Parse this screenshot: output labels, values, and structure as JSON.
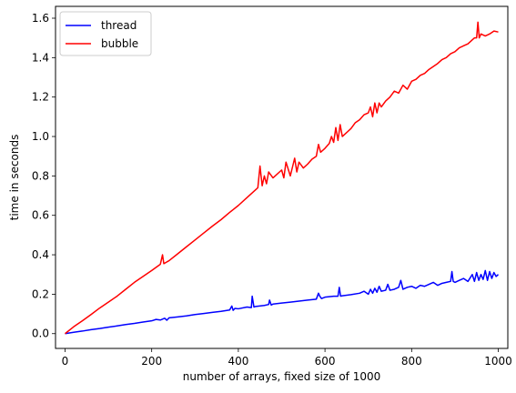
{
  "chart_data": {
    "type": "line",
    "xlabel": "number of arrays, fixed size of 1000",
    "ylabel": "time in seconds",
    "xlim": [
      -22,
      1022
    ],
    "ylim": [
      -0.075,
      1.66
    ],
    "xticks": [
      0,
      200,
      400,
      600,
      800,
      1000
    ],
    "yticks": [
      0.0,
      0.2,
      0.4,
      0.6,
      0.8,
      1.0,
      1.2,
      1.4,
      1.6
    ],
    "grid": false,
    "legend": "top-left",
    "series": [
      {
        "name": "thread",
        "color": "#0000ff",
        "x": [
          0,
          20,
          40,
          60,
          80,
          100,
          120,
          140,
          160,
          180,
          200,
          210,
          220,
          230,
          235,
          240,
          260,
          280,
          300,
          320,
          340,
          360,
          380,
          385,
          388,
          392,
          400,
          420,
          430,
          432,
          436,
          440,
          460,
          470,
          472,
          476,
          480,
          500,
          520,
          540,
          560,
          580,
          585,
          588,
          592,
          600,
          620,
          630,
          633,
          636,
          640,
          660,
          680,
          690,
          700,
          705,
          710,
          715,
          720,
          725,
          730,
          740,
          745,
          750,
          760,
          770,
          775,
          780,
          790,
          800,
          810,
          820,
          830,
          840,
          850,
          860,
          870,
          880,
          890,
          893,
          896,
          900,
          910,
          920,
          930,
          940,
          945,
          950,
          955,
          960,
          965,
          970,
          975,
          980,
          985,
          990,
          995,
          1000
        ],
        "values": [
          0.0,
          0.007,
          0.013,
          0.02,
          0.026,
          0.033,
          0.039,
          0.046,
          0.052,
          0.059,
          0.065,
          0.072,
          0.069,
          0.078,
          0.068,
          0.08,
          0.085,
          0.09,
          0.097,
          0.102,
          0.108,
          0.113,
          0.12,
          0.14,
          0.118,
          0.128,
          0.126,
          0.135,
          0.132,
          0.19,
          0.135,
          0.138,
          0.143,
          0.148,
          0.17,
          0.145,
          0.15,
          0.155,
          0.16,
          0.165,
          0.17,
          0.175,
          0.205,
          0.19,
          0.178,
          0.185,
          0.19,
          0.19,
          0.235,
          0.19,
          0.192,
          0.198,
          0.205,
          0.215,
          0.2,
          0.225,
          0.205,
          0.23,
          0.21,
          0.24,
          0.215,
          0.22,
          0.25,
          0.22,
          0.225,
          0.235,
          0.27,
          0.225,
          0.235,
          0.24,
          0.23,
          0.245,
          0.24,
          0.25,
          0.26,
          0.245,
          0.255,
          0.26,
          0.265,
          0.315,
          0.265,
          0.26,
          0.27,
          0.28,
          0.265,
          0.3,
          0.265,
          0.31,
          0.27,
          0.3,
          0.275,
          0.32,
          0.27,
          0.315,
          0.28,
          0.31,
          0.29,
          0.3
        ]
      },
      {
        "name": "bubble",
        "color": "#ff0000",
        "x": [
          0,
          20,
          40,
          60,
          80,
          100,
          120,
          140,
          160,
          180,
          200,
          220,
          225,
          228,
          232,
          240,
          260,
          280,
          300,
          320,
          340,
          360,
          380,
          400,
          420,
          440,
          445,
          450,
          455,
          460,
          465,
          470,
          480,
          500,
          505,
          510,
          520,
          530,
          535,
          540,
          550,
          560,
          570,
          580,
          585,
          590,
          600,
          610,
          615,
          620,
          625,
          630,
          635,
          640,
          650,
          660,
          670,
          680,
          690,
          700,
          705,
          710,
          715,
          720,
          725,
          730,
          740,
          750,
          760,
          770,
          780,
          790,
          800,
          810,
          820,
          830,
          840,
          850,
          860,
          870,
          880,
          890,
          900,
          910,
          920,
          930,
          940,
          945,
          950,
          953,
          956,
          960,
          970,
          980,
          990,
          1000
        ],
        "values": [
          0.0,
          0.035,
          0.065,
          0.097,
          0.13,
          0.16,
          0.19,
          0.225,
          0.26,
          0.29,
          0.32,
          0.352,
          0.4,
          0.355,
          0.36,
          0.37,
          0.405,
          0.44,
          0.475,
          0.51,
          0.545,
          0.578,
          0.615,
          0.65,
          0.69,
          0.73,
          0.74,
          0.85,
          0.75,
          0.8,
          0.76,
          0.82,
          0.79,
          0.83,
          0.79,
          0.87,
          0.8,
          0.89,
          0.82,
          0.87,
          0.84,
          0.86,
          0.885,
          0.9,
          0.96,
          0.92,
          0.94,
          0.965,
          1.0,
          0.97,
          1.045,
          0.98,
          1.06,
          1.0,
          1.02,
          1.04,
          1.07,
          1.085,
          1.11,
          1.12,
          1.15,
          1.1,
          1.17,
          1.12,
          1.17,
          1.15,
          1.18,
          1.2,
          1.23,
          1.22,
          1.26,
          1.24,
          1.28,
          1.29,
          1.31,
          1.32,
          1.34,
          1.355,
          1.37,
          1.39,
          1.4,
          1.42,
          1.43,
          1.45,
          1.46,
          1.47,
          1.49,
          1.5,
          1.5,
          1.58,
          1.5,
          1.52,
          1.51,
          1.52,
          1.535,
          1.53
        ]
      }
    ]
  }
}
